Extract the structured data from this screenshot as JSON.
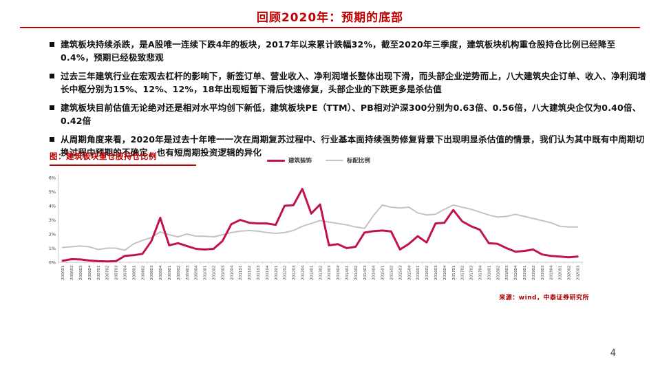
{
  "header": {
    "title": "回顾2020年：预期的底部"
  },
  "bullets": [
    "建筑板块持续杀跌，是A股唯一连续下跌4年的板块，2017年以来累计跌幅32%，截至2020年三季度，建筑板块机构重仓股持仓比例已经降至0.4%，预期已经极致悲观",
    "过去三年建筑行业在宏观去杠杆的影响下，新签订单、营业收入、净利润增长整体出现下滑，而头部企业逆势而上，八大建筑央企订单、收入、净利润增长中枢分别为15%、12%、12%，18年出现短暂下滑后快速修复，头部企业的下跌更多是杀估值",
    "建筑板块目前估值无论绝对还是相对水平均创下新低，建筑板块PE（TTM）、PB相对沪深300分别为0.63倍、0.56倍，八大建筑央企仅为0.40倍、0.42倍",
    "从周期角度来看，2020年是过去十年唯一一次在周期复苏过程中、行业基本面持续强势修复背景下出现明显杀估值的情景，我们认为其中既有中周期切换过程中预期的不确定，也有短周期投资逻辑的异化"
  ],
  "figure": {
    "title": "图：建筑板块重仓股持仓比例"
  },
  "chart_data": {
    "type": "line",
    "title": "建筑板块重仓股持仓比例",
    "xlabel": "",
    "ylabel": "",
    "ylim": [
      0,
      6
    ],
    "ytick_step": 1,
    "ytick_suffix": "%",
    "grid": false,
    "legend_position": "top-center",
    "axis_color": "#C9C9C9",
    "tick_label_color": "#3a3a3a",
    "categories": [
      "200601",
      "200602",
      "200603",
      "200604",
      "200701",
      "200702",
      "200703",
      "200704",
      "200801",
      "200802",
      "200803",
      "200804",
      "200901",
      "200902",
      "200903",
      "200904",
      "201001",
      "201002",
      "201003",
      "201004",
      "201101",
      "201102",
      "201103",
      "201104",
      "201201",
      "201202",
      "201203",
      "201204",
      "201301",
      "201302",
      "201303",
      "201304",
      "201401",
      "201402",
      "201403",
      "201404",
      "201501",
      "201502",
      "201503",
      "201504",
      "201601",
      "201602",
      "201603",
      "201604",
      "201701",
      "201702",
      "201703",
      "201704",
      "201801",
      "201802",
      "201803",
      "201804",
      "201901",
      "201902",
      "201903",
      "201904",
      "202001",
      "202002",
      "202003"
    ],
    "series": [
      {
        "name": "建筑装饰",
        "color": "#C0124B",
        "stroke_width": 3,
        "data_name": "construction-series-line",
        "values": [
          0.1,
          0.22,
          0.2,
          0.12,
          0.08,
          0.06,
          0.08,
          0.45,
          0.5,
          0.6,
          1.5,
          3.15,
          1.2,
          1.35,
          1.15,
          0.95,
          0.9,
          0.95,
          1.5,
          2.7,
          3.0,
          2.8,
          2.75,
          2.75,
          2.65,
          4.0,
          4.05,
          5.2,
          3.45,
          4.1,
          1.2,
          1.28,
          1.0,
          1.1,
          2.1,
          2.2,
          2.25,
          2.18,
          0.9,
          1.3,
          1.85,
          1.4,
          2.75,
          2.8,
          3.7,
          2.9,
          2.55,
          2.3,
          1.35,
          1.3,
          1.0,
          0.75,
          0.8,
          0.9,
          0.55,
          0.45,
          0.4,
          0.35,
          0.4
        ]
      },
      {
        "name": "标配比例",
        "color": "#C3C3C3",
        "stroke_width": 2,
        "data_name": "benchmark-series-line",
        "values": [
          1.05,
          1.1,
          1.15,
          1.1,
          0.9,
          1.0,
          1.0,
          0.85,
          1.3,
          1.55,
          1.75,
          2.15,
          1.95,
          1.8,
          2.0,
          1.85,
          1.85,
          1.8,
          1.95,
          2.1,
          2.2,
          2.25,
          2.2,
          2.1,
          2.05,
          2.1,
          2.25,
          2.55,
          2.75,
          2.95,
          2.85,
          2.75,
          2.65,
          2.5,
          2.4,
          3.3,
          4.05,
          3.9,
          3.85,
          3.9,
          3.5,
          3.35,
          3.4,
          3.75,
          4.05,
          3.9,
          3.75,
          3.55,
          3.35,
          3.2,
          3.25,
          3.4,
          3.25,
          3.1,
          2.95,
          2.8,
          2.55,
          2.5,
          2.5
        ]
      }
    ]
  },
  "source": {
    "text": "来源：wind，中泰证券研究所"
  },
  "page_number": "4",
  "colors": {
    "accent_red": "#C00000",
    "series_construction": "#C0124B",
    "series_benchmark": "#C3C3C3",
    "source_red": "#A50000"
  }
}
